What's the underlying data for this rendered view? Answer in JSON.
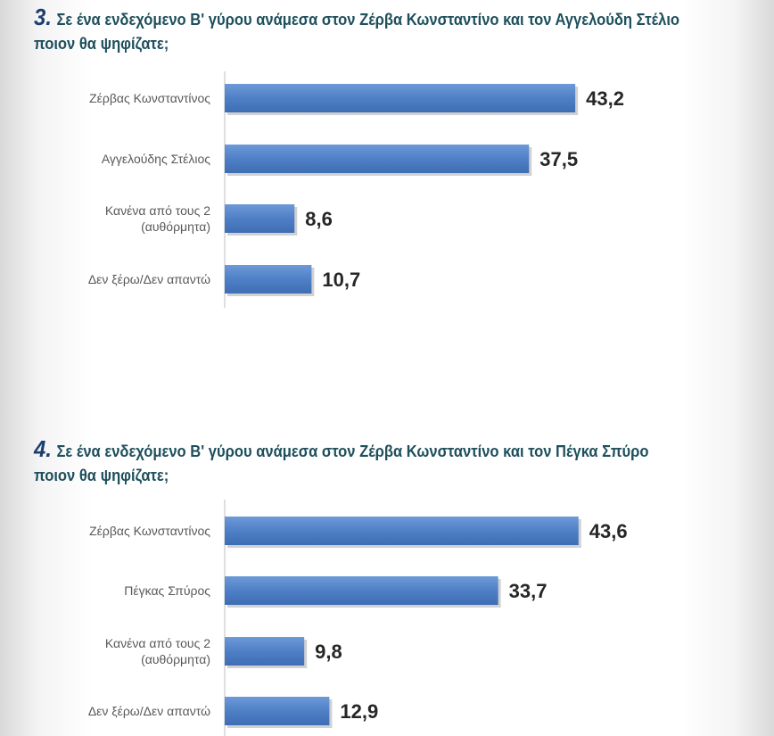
{
  "chart_data": [
    {
      "type": "bar",
      "orientation": "horizontal",
      "number": "3.",
      "title": "Σε ένα ενδεχόμενο Β' γύρου ανάμεσα στον Ζέρβα Κωνσταντίνο και τον Αγγελούδη Στέλιο  ποιον θα ψηφίζατε;",
      "categories": [
        [
          "Ζέρβας Κωνσταντίνος"
        ],
        [
          "Αγγελούδης Στέλιος"
        ],
        [
          "Κανένα από τους 2",
          "(αυθόρμητα)"
        ],
        [
          "Δεν ξέρω/Δεν απαντώ"
        ]
      ],
      "values": [
        43.2,
        37.5,
        8.6,
        10.7
      ],
      "labels": [
        "43,2",
        "37,5",
        "8,6",
        "10,7"
      ],
      "color": "#4f7fc6"
    },
    {
      "type": "bar",
      "orientation": "horizontal",
      "number": "4.",
      "title": "Σε ένα ενδεχόμενο Β' γύρου ανάμεσα στον Ζέρβα Κωνσταντίνο και τον Πέγκα Σπύρο ποιον θα ψηφίζατε;",
      "categories": [
        [
          "Ζέρβας Κωνσταντίνος"
        ],
        [
          "Πέγκας Σπύρος"
        ],
        [
          "Κανένα από τους 2",
          "(αυθόρμητα)"
        ],
        [
          "Δεν ξέρω/Δεν απαντώ"
        ]
      ],
      "values": [
        43.6,
        33.7,
        9.8,
        12.9
      ],
      "labels": [
        "43,6",
        "33,7",
        "9,8",
        "12,9"
      ],
      "color": "#4f7fc6"
    }
  ]
}
